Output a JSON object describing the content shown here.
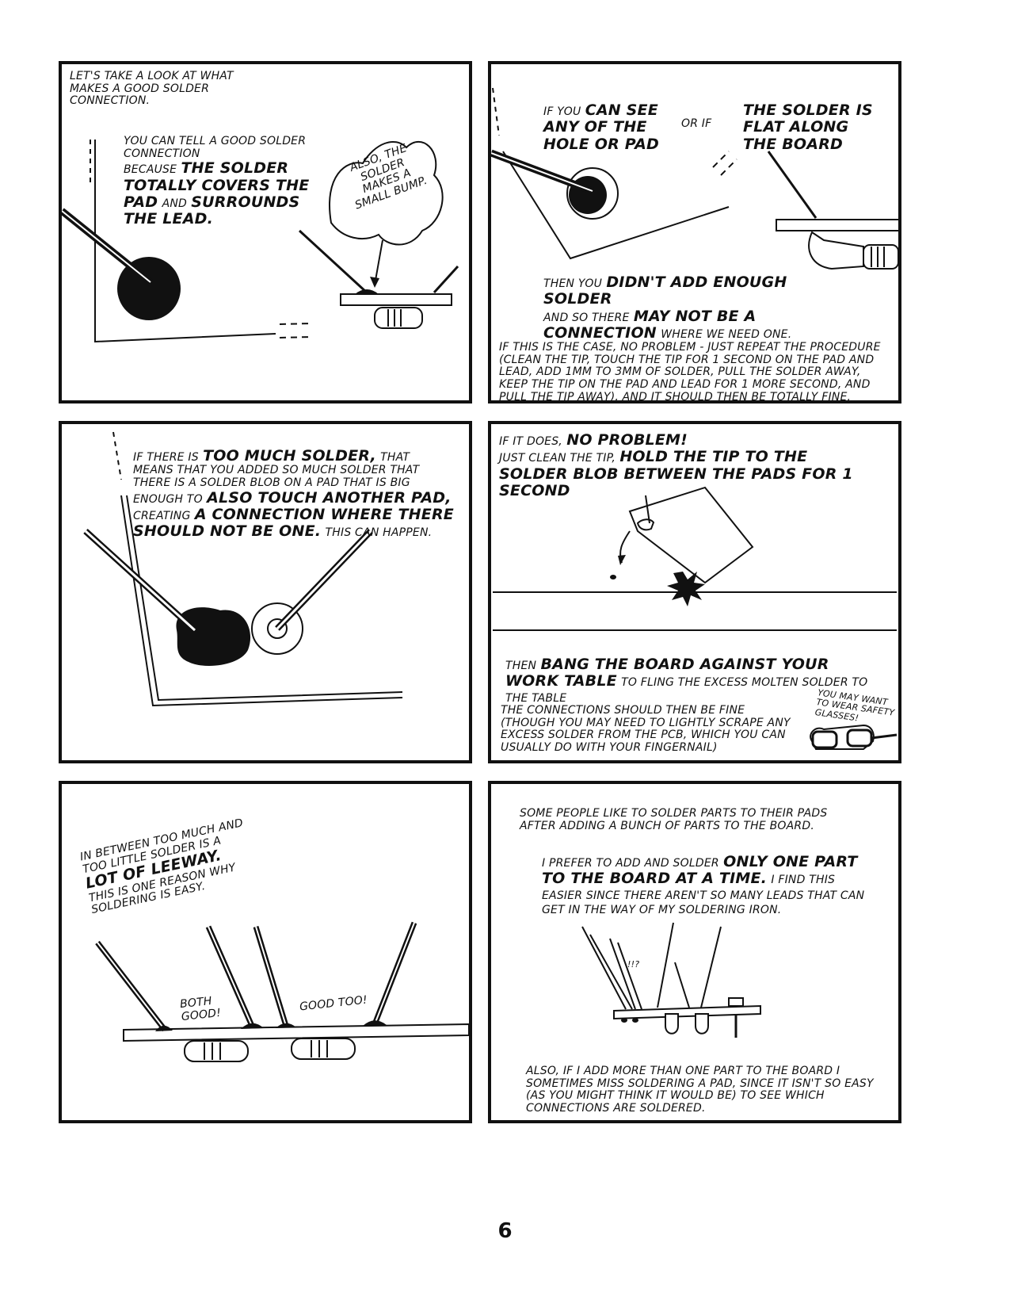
{
  "page_number": "6",
  "panel1": {
    "intro": "Let's take a look at what makes a good solder connection.",
    "tell_a": "You can tell a good solder connection",
    "tell_b_small": "because",
    "tell_b_big": "the solder totally covers the",
    "tell_c_big": "pad",
    "tell_c_small": "and",
    "tell_c_big2": "surrounds the lead.",
    "bubble": "Also, the solder makes a small bump."
  },
  "panel2": {
    "if_a_small": "If you",
    "if_a_big": "can see any of the hole or pad",
    "or_if": "or if",
    "flat": "the solder is flat along the board",
    "then_small": "then you",
    "then_big": "didn't add enough solder",
    "so_small": "and so there",
    "so_big": "may not be a connection",
    "where_small": "where we need one.",
    "procedure": "If this is the case, no problem - just repeat the procedure (clean the tip, touch the tip for 1 second on the pad and lead, add 1mm to 3mm of solder, pull the solder away, keep the tip on the pad and lead for 1 more second, and pull the tip away), and it should then be totally fine."
  },
  "panel3": {
    "l1_small": "If there is",
    "l1_big": "too much solder,",
    "l1_small2": "that",
    "l2": "means that you added so much solder that there is a solder blob on a pad that is big",
    "l3_small": "enough to",
    "l3_big": "also touch another pad,",
    "l4_small": "creating",
    "l4_big": "a connection where there should not be one.",
    "l4_small2": "This can happen."
  },
  "panel4": {
    "l1_small": "If it does,",
    "l1_big": "no problem!",
    "l2_small": "Just clean the tip,",
    "l2_big": "hold the tip to the solder blob between the pads for 1 second",
    "bang_small": "then",
    "bang_big": "bang the board against your work table",
    "bang_small2": "to fling the excess molten solder to the table",
    "fine": "The connections should then be fine (though you may need to lightly scrape any excess solder from the PCB, which you can usually do with your fingernail)",
    "glasses": "You may want to wear safety glasses!"
  },
  "panel5": {
    "l1": "In between too much and too little solder is a",
    "l2_big": "lot of leeway.",
    "l3": "This is one reason why soldering is easy.",
    "both_good": "Both good!",
    "good_too": "Good too!"
  },
  "panel6": {
    "l1": "Some people like to solder parts to their pads after adding a bunch of parts to the board.",
    "l2_small": "I prefer to add and solder",
    "l2_big": "only one part to the board at a time.",
    "l2_small2": "I find this easier since there aren't so many leads that can get in the way of my soldering iron.",
    "exclaim": "!!?",
    "l3": "Also, if I add more than one part to the board I sometimes miss soldering a pad, since it isn't so easy (as you might think it would be) to see which connections are soldered."
  }
}
